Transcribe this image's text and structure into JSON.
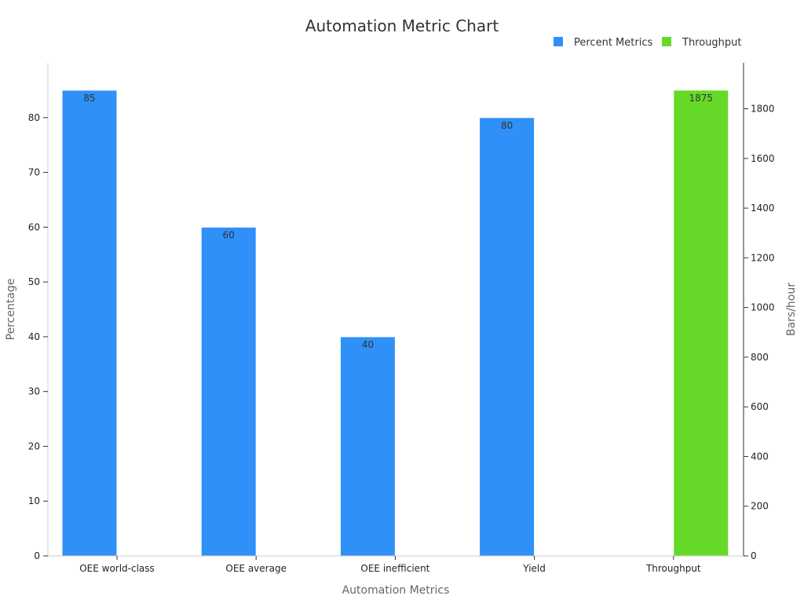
{
  "chart_data": {
    "type": "bar",
    "title": "Automation Metric Chart",
    "xlabel": "Automation Metrics",
    "ylabel": "Percentage",
    "ylabel_right": "Bars/hour",
    "categories": [
      "OEE world-class",
      "OEE average",
      "OEE inefficient",
      "Yield",
      "Throughput"
    ],
    "series": [
      {
        "name": "Percent Metrics",
        "axis": "left",
        "color": "#2f90f8",
        "values": [
          85,
          60,
          40,
          80,
          null
        ]
      },
      {
        "name": "Throughput",
        "axis": "right",
        "color": "#66d928",
        "values": [
          null,
          null,
          null,
          null,
          1875
        ]
      }
    ],
    "ylim": [
      0,
      90
    ],
    "yticks": [
      0,
      10,
      20,
      30,
      40,
      50,
      60,
      70,
      80
    ],
    "ylim_right": [
      0,
      1985
    ],
    "yticks_right": [
      0,
      200,
      400,
      600,
      800,
      1000,
      1200,
      1400,
      1600,
      1800
    ],
    "legend": "top-right",
    "grid": false
  }
}
